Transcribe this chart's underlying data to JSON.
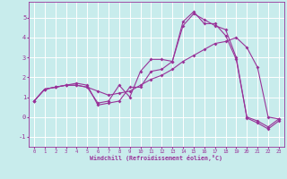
{
  "xlabel": "Windchill (Refroidissement éolien,°C)",
  "bg_color": "#c8ecec",
  "grid_color": "#ffffff",
  "line_color": "#993399",
  "xlim": [
    -0.5,
    23.5
  ],
  "ylim": [
    -1.5,
    5.8
  ],
  "xticks": [
    0,
    1,
    2,
    3,
    4,
    5,
    6,
    7,
    8,
    9,
    10,
    11,
    12,
    13,
    14,
    15,
    16,
    17,
    18,
    19,
    20,
    21,
    22,
    23
  ],
  "yticks": [
    -1,
    0,
    1,
    2,
    3,
    4,
    5
  ],
  "line1_x": [
    0,
    1,
    2,
    3,
    4,
    5,
    6,
    7,
    8,
    9,
    10,
    11,
    12,
    13,
    14,
    15,
    16,
    17,
    18,
    19,
    20,
    21,
    22,
    23
  ],
  "line1_y": [
    0.8,
    1.4,
    1.5,
    1.6,
    1.6,
    1.5,
    0.7,
    0.8,
    1.6,
    1.0,
    2.3,
    2.9,
    2.9,
    2.8,
    4.8,
    5.3,
    4.7,
    4.7,
    4.1,
    2.9,
    0.0,
    -0.2,
    -0.5,
    -0.1
  ],
  "line2_x": [
    0,
    1,
    2,
    3,
    4,
    5,
    6,
    7,
    8,
    9,
    10,
    11,
    12,
    13,
    14,
    15,
    16,
    17,
    18,
    19,
    20,
    21,
    22,
    23
  ],
  "line2_y": [
    0.8,
    1.4,
    1.5,
    1.6,
    1.6,
    1.5,
    1.3,
    1.1,
    1.2,
    1.3,
    1.6,
    1.9,
    2.1,
    2.4,
    2.8,
    3.1,
    3.4,
    3.7,
    3.8,
    4.0,
    3.5,
    2.5,
    0.0,
    -0.1
  ],
  "line3_x": [
    0,
    1,
    2,
    3,
    4,
    5,
    6,
    7,
    8,
    9,
    10,
    11,
    12,
    13,
    14,
    15,
    16,
    17,
    18,
    19,
    20,
    21,
    22,
    23
  ],
  "line3_y": [
    0.8,
    1.4,
    1.5,
    1.6,
    1.7,
    1.6,
    0.6,
    0.7,
    0.8,
    1.5,
    1.5,
    2.3,
    2.4,
    2.8,
    4.6,
    5.2,
    4.9,
    4.6,
    4.4,
    3.0,
    -0.05,
    -0.3,
    -0.6,
    -0.2
  ]
}
